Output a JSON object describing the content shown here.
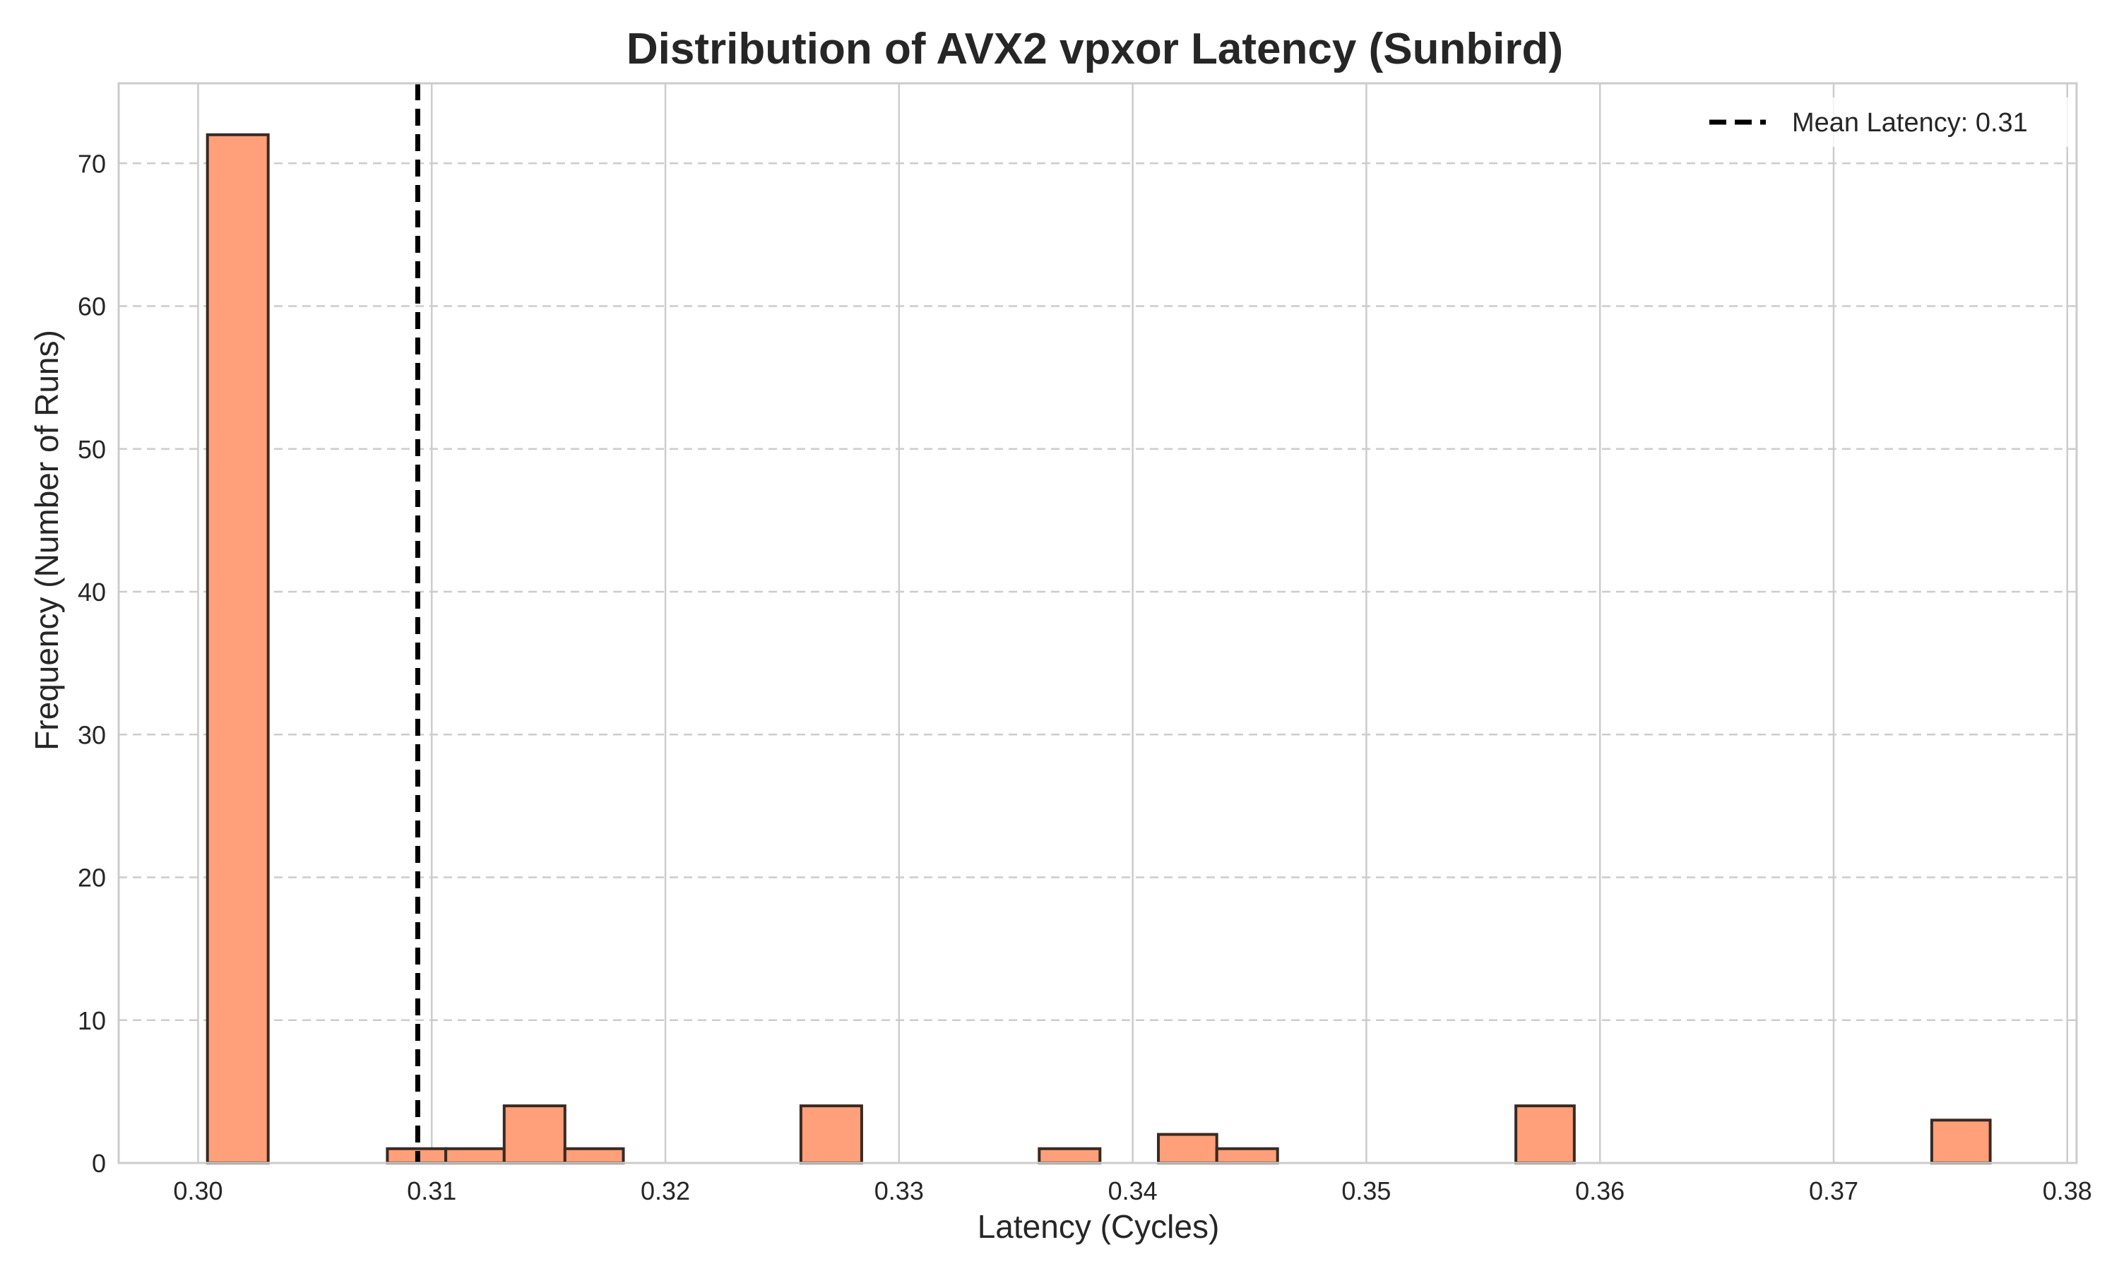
{
  "chart_data": {
    "type": "bar",
    "title": "Distribution of AVX2 vpxor Latency (Sunbird)",
    "xlabel": "Latency (Cycles)",
    "ylabel": "Frequency (Number of Runs)",
    "xlim": [
      0.2966,
      0.3804
    ],
    "ylim": [
      0,
      75.6
    ],
    "xticks": [
      "0.30",
      "0.31",
      "0.32",
      "0.33",
      "0.34",
      "0.35",
      "0.36",
      "0.37",
      "0.38"
    ],
    "yticks": [
      "0",
      "10",
      "20",
      "30",
      "40",
      "50",
      "60",
      "70"
    ],
    "grid": {
      "x": true,
      "y": true,
      "y_style": "dashed"
    },
    "bins": [
      {
        "x0": 0.3004,
        "x1": 0.303,
        "count": 72
      },
      {
        "x0": 0.3081,
        "x1": 0.3106,
        "count": 1
      },
      {
        "x0": 0.3106,
        "x1": 0.3131,
        "count": 1
      },
      {
        "x0": 0.3131,
        "x1": 0.3157,
        "count": 4
      },
      {
        "x0": 0.3157,
        "x1": 0.3182,
        "count": 1
      },
      {
        "x0": 0.3258,
        "x1": 0.3284,
        "count": 4
      },
      {
        "x0": 0.336,
        "x1": 0.3386,
        "count": 1
      },
      {
        "x0": 0.3411,
        "x1": 0.3436,
        "count": 2
      },
      {
        "x0": 0.3436,
        "x1": 0.3462,
        "count": 1
      },
      {
        "x0": 0.3564,
        "x1": 0.3589,
        "count": 4
      },
      {
        "x0": 0.3742,
        "x1": 0.3767,
        "count": 3
      }
    ],
    "mean_line": {
      "x": 0.3094,
      "label": "Mean Latency: 0.31"
    },
    "legend_position": "top-right",
    "colors": {
      "bar_fill": "#ffa07a",
      "bar_edge": "#3a2a22",
      "mean_line": "#000000",
      "grid": "#cccccc",
      "frame": "#cccccc",
      "text": "#262626"
    }
  }
}
